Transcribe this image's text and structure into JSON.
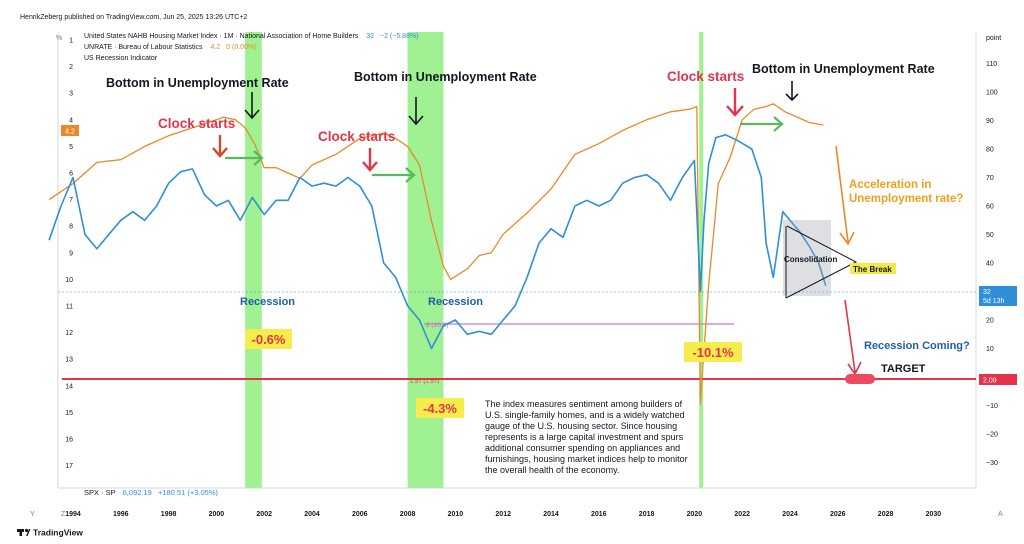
{
  "header": {
    "publisher": "HenrikZeberg published on TradingView.com, Jun 25, 2025 13:26 UTC+2",
    "left_unit": "%",
    "right_unit": "point",
    "legend": [
      {
        "name": "United States NAHB Housing Market Index · 1M · National Association of Home Builders",
        "value": "32",
        "change": "−2 (−5.88%)",
        "color": "#2f8fd8"
      },
      {
        "name": "UNRATE · Bureau of Labour Statistics",
        "value": "4.2",
        "change": "0 (0.00%)",
        "color": "#e88a28"
      },
      {
        "name": "US Recession Indicator",
        "value": "",
        "change": "",
        "color": "#7be38a"
      }
    ]
  },
  "footer": {
    "spx_label": "SPX · SP",
    "spx_value": "6,092.19",
    "spx_change": "+180.51 (+3.05%)",
    "brand": "TradingView",
    "nav_left": [
      "Y",
      "Z"
    ],
    "nav_right": "A"
  },
  "chart_data": {
    "type": "line",
    "xlim": [
      1992.6,
      2031.8
    ],
    "x_ticks": [
      "1994",
      "1996",
      "1998",
      "2000",
      "2002",
      "2004",
      "2006",
      "2008",
      "2010",
      "2012",
      "2014",
      "2016",
      "2018",
      "2020",
      "2022",
      "2024",
      "2026",
      "2028",
      "2030"
    ],
    "left_axis": {
      "label": "%",
      "ticks": [
        "1",
        "2",
        "3",
        "4",
        "5",
        "6",
        "7",
        "8",
        "9",
        "10",
        "11",
        "12",
        "13",
        "14",
        "15",
        "16",
        "17"
      ],
      "inverted": true
    },
    "right_axis": {
      "label": "point",
      "ticks": [
        "110",
        "100",
        "90",
        "80",
        "70",
        "60",
        "50",
        "40",
        "30",
        "20",
        "10",
        "0",
        "−10",
        "−20",
        "−30"
      ]
    },
    "recessions": [
      [
        2001.2,
        2001.9
      ],
      [
        2008.0,
        2009.5
      ],
      [
        2020.2,
        2020.35
      ]
    ],
    "series": [
      {
        "name": "UNRATE · Bureau of Labour Statistics",
        "axis": "left",
        "color": "#e88a28",
        "x": [
          1993.0,
          1994.0,
          1995.0,
          1996.0,
          1997.0,
          1998.0,
          1999.0,
          2000.0,
          2000.3,
          2000.8,
          2001.2,
          2001.6,
          2002.0,
          2002.5,
          2003.0,
          2003.5,
          2004.0,
          2004.5,
          2005.0,
          2005.5,
          2006.0,
          2006.5,
          2007.0,
          2007.5,
          2008.0,
          2008.5,
          2009.0,
          2009.5,
          2009.8,
          2010.5,
          2011.0,
          2011.5,
          2012.0,
          2013.0,
          2014.0,
          2015.0,
          2016.0,
          2017.0,
          2018.0,
          2019.0,
          2019.8,
          2020.1,
          2020.25,
          2020.35,
          2020.6,
          2021.0,
          2021.5,
          2022.0,
          2022.5,
          2023.0,
          2023.3,
          2023.8,
          2024.3,
          2024.8,
          2025.4
        ],
        "values": [
          7.0,
          6.4,
          5.6,
          5.5,
          5.0,
          4.6,
          4.3,
          4.0,
          3.9,
          4.0,
          4.3,
          4.9,
          5.8,
          5.8,
          6.0,
          6.2,
          5.7,
          5.5,
          5.3,
          5.0,
          4.7,
          4.6,
          4.5,
          4.7,
          5.0,
          5.7,
          7.8,
          9.5,
          10.0,
          9.6,
          9.1,
          9.0,
          8.3,
          7.5,
          6.6,
          5.3,
          4.9,
          4.4,
          4.0,
          3.7,
          3.6,
          3.5,
          14.7,
          13.3,
          10.2,
          6.4,
          5.4,
          4.0,
          3.6,
          3.5,
          3.4,
          3.7,
          3.9,
          4.1,
          4.2
        ]
      },
      {
        "name": "United States NAHB Housing Market Index",
        "axis": "right",
        "color": "#2f8fd8",
        "x": [
          1993.0,
          1993.5,
          1994.0,
          1994.5,
          1995.0,
          1995.5,
          1996.0,
          1996.5,
          1997.0,
          1997.5,
          1998.0,
          1998.5,
          1999.0,
          1999.5,
          2000.0,
          2000.5,
          2001.0,
          2001.5,
          2002.0,
          2002.5,
          2003.0,
          2003.5,
          2004.0,
          2004.5,
          2005.0,
          2005.5,
          2006.0,
          2006.5,
          2007.0,
          2007.5,
          2008.0,
          2008.5,
          2009.0,
          2009.5,
          2010.0,
          2010.5,
          2011.0,
          2011.5,
          2012.0,
          2012.5,
          2013.0,
          2013.5,
          2014.0,
          2014.5,
          2015.0,
          2015.5,
          2016.0,
          2016.5,
          2017.0,
          2017.5,
          2018.0,
          2018.5,
          2019.0,
          2019.5,
          2020.0,
          2020.25,
          2020.4,
          2020.6,
          2020.9,
          2021.3,
          2021.8,
          2022.0,
          2022.4,
          2022.8,
          2023.0,
          2023.3,
          2023.7,
          2024.0,
          2024.4,
          2024.8,
          2025.2,
          2025.5
        ],
        "values": [
          48,
          60,
          70,
          50,
          45,
          50,
          55,
          58,
          55,
          60,
          68,
          72,
          73,
          64,
          60,
          62,
          55,
          63,
          57,
          62,
          62,
          70,
          67,
          68,
          67,
          70,
          67,
          60,
          40,
          35,
          25,
          20,
          10,
          18,
          20,
          15,
          16,
          15,
          20,
          25,
          35,
          47,
          52,
          49,
          60,
          62,
          60,
          62,
          68,
          70,
          71,
          68,
          62,
          70,
          76,
          30,
          55,
          75,
          84,
          85,
          83,
          82,
          80,
          70,
          47,
          35,
          58,
          55,
          51,
          46,
          40,
          32
        ]
      }
    ],
    "annotations": {
      "bottoms": [
        "Bottom in Unemployment Rate",
        "Bottom in Unemployment Rate",
        "Bottom in Unemployment Rate"
      ],
      "clocks": [
        "Clock starts",
        "Clock starts",
        "Clock starts"
      ],
      "recession_labels": [
        "Recession",
        "Recession"
      ],
      "drops": [
        "-0.6%",
        "-4.3%",
        "-10.1%"
      ],
      "consolidation": "Consolidation",
      "the_break": "The Break",
      "acceleration": [
        "Acceleration in",
        "Unemployment rate?"
      ],
      "recession_coming": "Recession Coming?",
      "target": "TARGET",
      "level_2009_label": "2 (20.8)",
      "target_line_label": "1.57 (1.57)",
      "price_tag_top": "32",
      "price_tag_bottom": "5d 13h",
      "price_tag_target": "2.09",
      "left_price_tag": "4.2",
      "description": [
        "The index measures sentiment among builders of",
        "U.S. single-family homes, and is a widely watched",
        "gauge of the U.S. housing sector. Since housing",
        "represents is a large capital investment and spurs",
        "additional consumer spending on appliances and",
        "furnishings, housing market indices help to monitor",
        "the overall health of the economy."
      ]
    }
  }
}
